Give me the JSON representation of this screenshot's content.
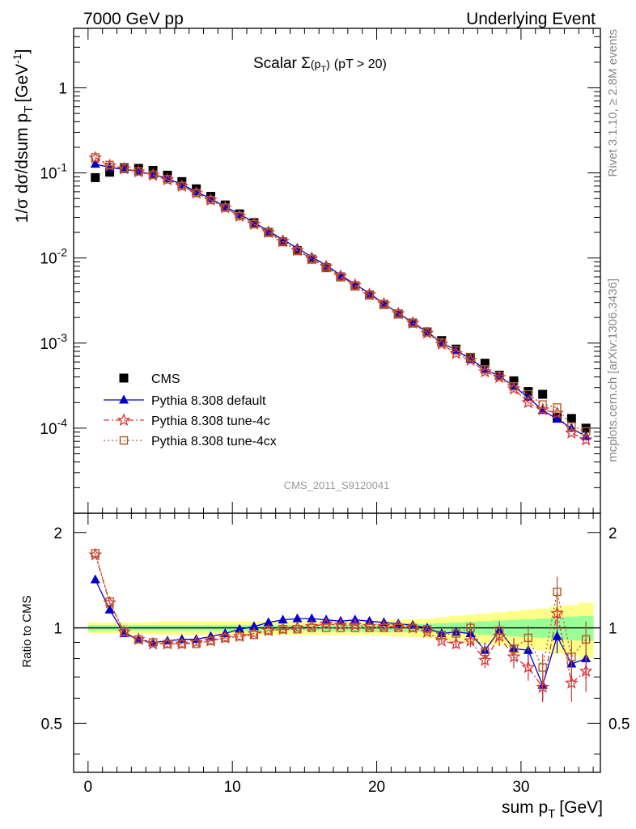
{
  "header": {
    "left": "7000 GeV pp",
    "right": "Underlying Event"
  },
  "side_text": {
    "rivet": "Rivet 3.1.10, ≥ 2.8M events",
    "mcplots": "mcplots.cern.ch [arXiv:1306.3436]"
  },
  "watermark": "CMS_2011_S9120041",
  "chart_data": {
    "type": "scatter",
    "title": "Scalar Σ(pT) (pT > 20)",
    "xlabel": "sum pT [GeV]",
    "ylabel": "1/σ dσ/dsum pT [GeV⁻¹]",
    "ratio_ylabel": "Ratio to CMS",
    "xlim": [
      -1,
      35.5
    ],
    "ylim": [
      1e-05,
      5
    ],
    "yscale": "log",
    "ratio_ylim": [
      0.35,
      2.3
    ],
    "x_ticks": [
      "0",
      "10",
      "20",
      "30"
    ],
    "y_ticks": [
      "10⁻⁴",
      "10⁻³",
      "10⁻²",
      "10⁻¹",
      "1"
    ],
    "ratio_ticks": [
      "0.5",
      "1",
      "2"
    ],
    "x": [
      0.5,
      1.5,
      2.5,
      3.5,
      4.5,
      5.5,
      6.5,
      7.5,
      8.5,
      9.5,
      10.5,
      11.5,
      12.5,
      13.5,
      14.5,
      15.5,
      16.5,
      17.5,
      18.5,
      19.5,
      20.5,
      21.5,
      22.5,
      23.5,
      24.5,
      25.5,
      26.5,
      27.5,
      28.5,
      29.5,
      30.5,
      31.5,
      32.5,
      33.5,
      34.5
    ],
    "series": [
      {
        "name": "CMS",
        "color": "#000000",
        "marker": "square-filled",
        "values": [
          0.088,
          0.102,
          0.115,
          0.113,
          0.107,
          0.094,
          0.079,
          0.065,
          0.053,
          0.042,
          0.033,
          0.026,
          0.02,
          0.0155,
          0.0122,
          0.0097,
          0.0077,
          0.006,
          0.0047,
          0.00368,
          0.00285,
          0.0022,
          0.00172,
          0.00135,
          0.00107,
          0.00085,
          0.00068,
          0.00058,
          0.00042,
          0.00036,
          0.00027,
          0.00025,
          0.000135,
          0.00013,
          0.0001
        ]
      },
      {
        "name": "Pythia 8.308 default",
        "color": "#0000cc",
        "marker": "triangle-filled",
        "values": [
          0.127,
          0.116,
          0.11,
          0.104,
          0.096,
          0.086,
          0.073,
          0.06,
          0.05,
          0.04,
          0.033,
          0.026,
          0.0208,
          0.0164,
          0.0131,
          0.0103,
          0.0082,
          0.0063,
          0.0049,
          0.00385,
          0.0029,
          0.00225,
          0.00175,
          0.00135,
          0.00102,
          0.00082,
          0.00065,
          0.00049,
          0.00041,
          0.00031,
          0.00023,
          0.000162,
          0.000128,
          0.0001,
          8e-05
        ]
      },
      {
        "name": "Pythia 8.308 tune-4c",
        "color": "#dd3333",
        "marker": "star-open",
        "values": [
          0.15,
          0.122,
          0.112,
          0.103,
          0.094,
          0.083,
          0.07,
          0.058,
          0.048,
          0.039,
          0.031,
          0.025,
          0.02,
          0.0157,
          0.0123,
          0.0098,
          0.0079,
          0.0061,
          0.0048,
          0.00372,
          0.00289,
          0.00222,
          0.00172,
          0.00131,
          0.000975,
          0.000755,
          0.00063,
          0.00046,
          0.000395,
          0.00029,
          0.0002,
          0.000165,
          0.00015,
          8.8e-05,
          7.3e-05
        ]
      },
      {
        "name": "Pythia 8.308 tune-4cx",
        "color": "#b35a2a",
        "marker": "square-open",
        "values": [
          0.152,
          0.124,
          0.113,
          0.104,
          0.095,
          0.084,
          0.07,
          0.058,
          0.048,
          0.039,
          0.031,
          0.025,
          0.0198,
          0.0155,
          0.0121,
          0.0097,
          0.0077,
          0.006,
          0.0047,
          0.00368,
          0.00285,
          0.0022,
          0.00172,
          0.00134,
          0.00101,
          0.00082,
          0.00068,
          0.00049,
          0.00041,
          0.00031,
          0.00025,
          0.00019,
          0.000175,
          0.000105,
          9.2e-05
        ]
      }
    ],
    "ratio_series": [
      {
        "name": "Pythia 8.308 default",
        "color": "#0000cc",
        "values": [
          1.42,
          1.14,
          0.96,
          0.92,
          0.9,
          0.91,
          0.92,
          0.92,
          0.94,
          0.96,
          0.99,
          1.01,
          1.04,
          1.06,
          1.07,
          1.07,
          1.06,
          1.05,
          1.06,
          1.05,
          1.04,
          1.03,
          1.02,
          1.0,
          0.96,
          0.97,
          0.96,
          0.85,
          0.98,
          0.86,
          0.85,
          0.66,
          0.94,
          0.77,
          0.8
        ]
      },
      {
        "name": "Pythia 8.308 tune-4c",
        "color": "#dd3333",
        "values": [
          1.7,
          1.2,
          0.97,
          0.92,
          0.89,
          0.89,
          0.89,
          0.9,
          0.91,
          0.93,
          0.94,
          0.96,
          0.98,
          0.99,
          1.0,
          1.01,
          1.03,
          1.02,
          1.02,
          1.01,
          1.01,
          1.01,
          1.0,
          0.97,
          0.91,
          0.89,
          0.91,
          0.79,
          0.94,
          0.81,
          0.75,
          0.65,
          1.11,
          0.67,
          0.73
        ]
      },
      {
        "name": "Pythia 8.308 tune-4cx",
        "color": "#b35a2a",
        "values": [
          1.72,
          1.21,
          0.97,
          0.92,
          0.9,
          0.89,
          0.89,
          0.89,
          0.91,
          0.93,
          0.94,
          0.95,
          0.98,
          0.99,
          0.99,
          1.0,
          1.0,
          1.0,
          1.0,
          1.0,
          1.0,
          1.0,
          1.0,
          0.99,
          0.95,
          0.96,
          1.0,
          0.84,
          0.98,
          0.86,
          0.93,
          0.75,
          1.3,
          0.81,
          0.92
        ]
      }
    ],
    "bands": {
      "inner_color": "#99ff99",
      "outer_color": "#ffff88",
      "inner_halfwidth": [
        0.02,
        0.02,
        0.02,
        0.02,
        0.02,
        0.02,
        0.02,
        0.02,
        0.02,
        0.02,
        0.02,
        0.02,
        0.02,
        0.02,
        0.02,
        0.02,
        0.025,
        0.025,
        0.025,
        0.03,
        0.03,
        0.03,
        0.03,
        0.03,
        0.035,
        0.04,
        0.045,
        0.05,
        0.055,
        0.06,
        0.065,
        0.07,
        0.08,
        0.085,
        0.09
      ],
      "outer_halfwidth": [
        0.04,
        0.04,
        0.04,
        0.04,
        0.045,
        0.05,
        0.05,
        0.05,
        0.05,
        0.05,
        0.05,
        0.05,
        0.05,
        0.05,
        0.05,
        0.05,
        0.05,
        0.05,
        0.05,
        0.05,
        0.055,
        0.06,
        0.065,
        0.07,
        0.08,
        0.09,
        0.1,
        0.11,
        0.12,
        0.13,
        0.14,
        0.15,
        0.17,
        0.18,
        0.2
      ]
    },
    "legend_position": "bottom-left"
  }
}
